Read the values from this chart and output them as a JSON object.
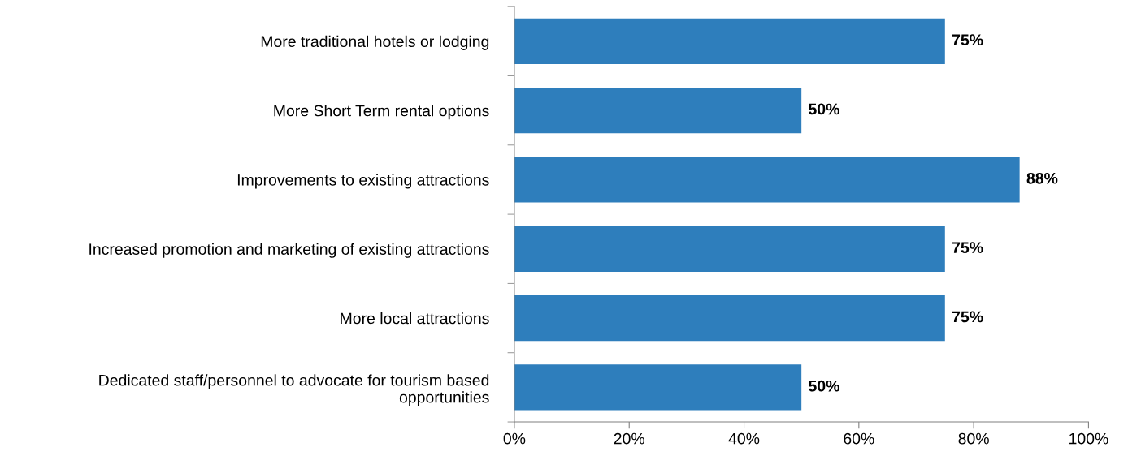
{
  "chart_data": {
    "type": "bar",
    "orientation": "horizontal",
    "categories": [
      "More traditional hotels or lodging",
      "More Short Term rental options",
      "Improvements to existing attractions",
      "Increased promotion and marketing of existing attractions",
      "More local attractions",
      "Dedicated staff/personnel to advocate for tourism based\nopportunities"
    ],
    "values": [
      75,
      50,
      88,
      75,
      75,
      50
    ],
    "value_labels": [
      "75%",
      "50%",
      "88%",
      "75%",
      "75%",
      "50%"
    ],
    "color": "#2e7ebc",
    "xlim": [
      0,
      100
    ],
    "xticks": [
      {
        "value": 0,
        "label": "0%"
      },
      {
        "value": 20,
        "label": "20%"
      },
      {
        "value": 40,
        "label": "40%"
      },
      {
        "value": 60,
        "label": "60%"
      },
      {
        "value": 80,
        "label": "80%"
      },
      {
        "value": 100,
        "label": "100%"
      }
    ],
    "grid": false
  }
}
